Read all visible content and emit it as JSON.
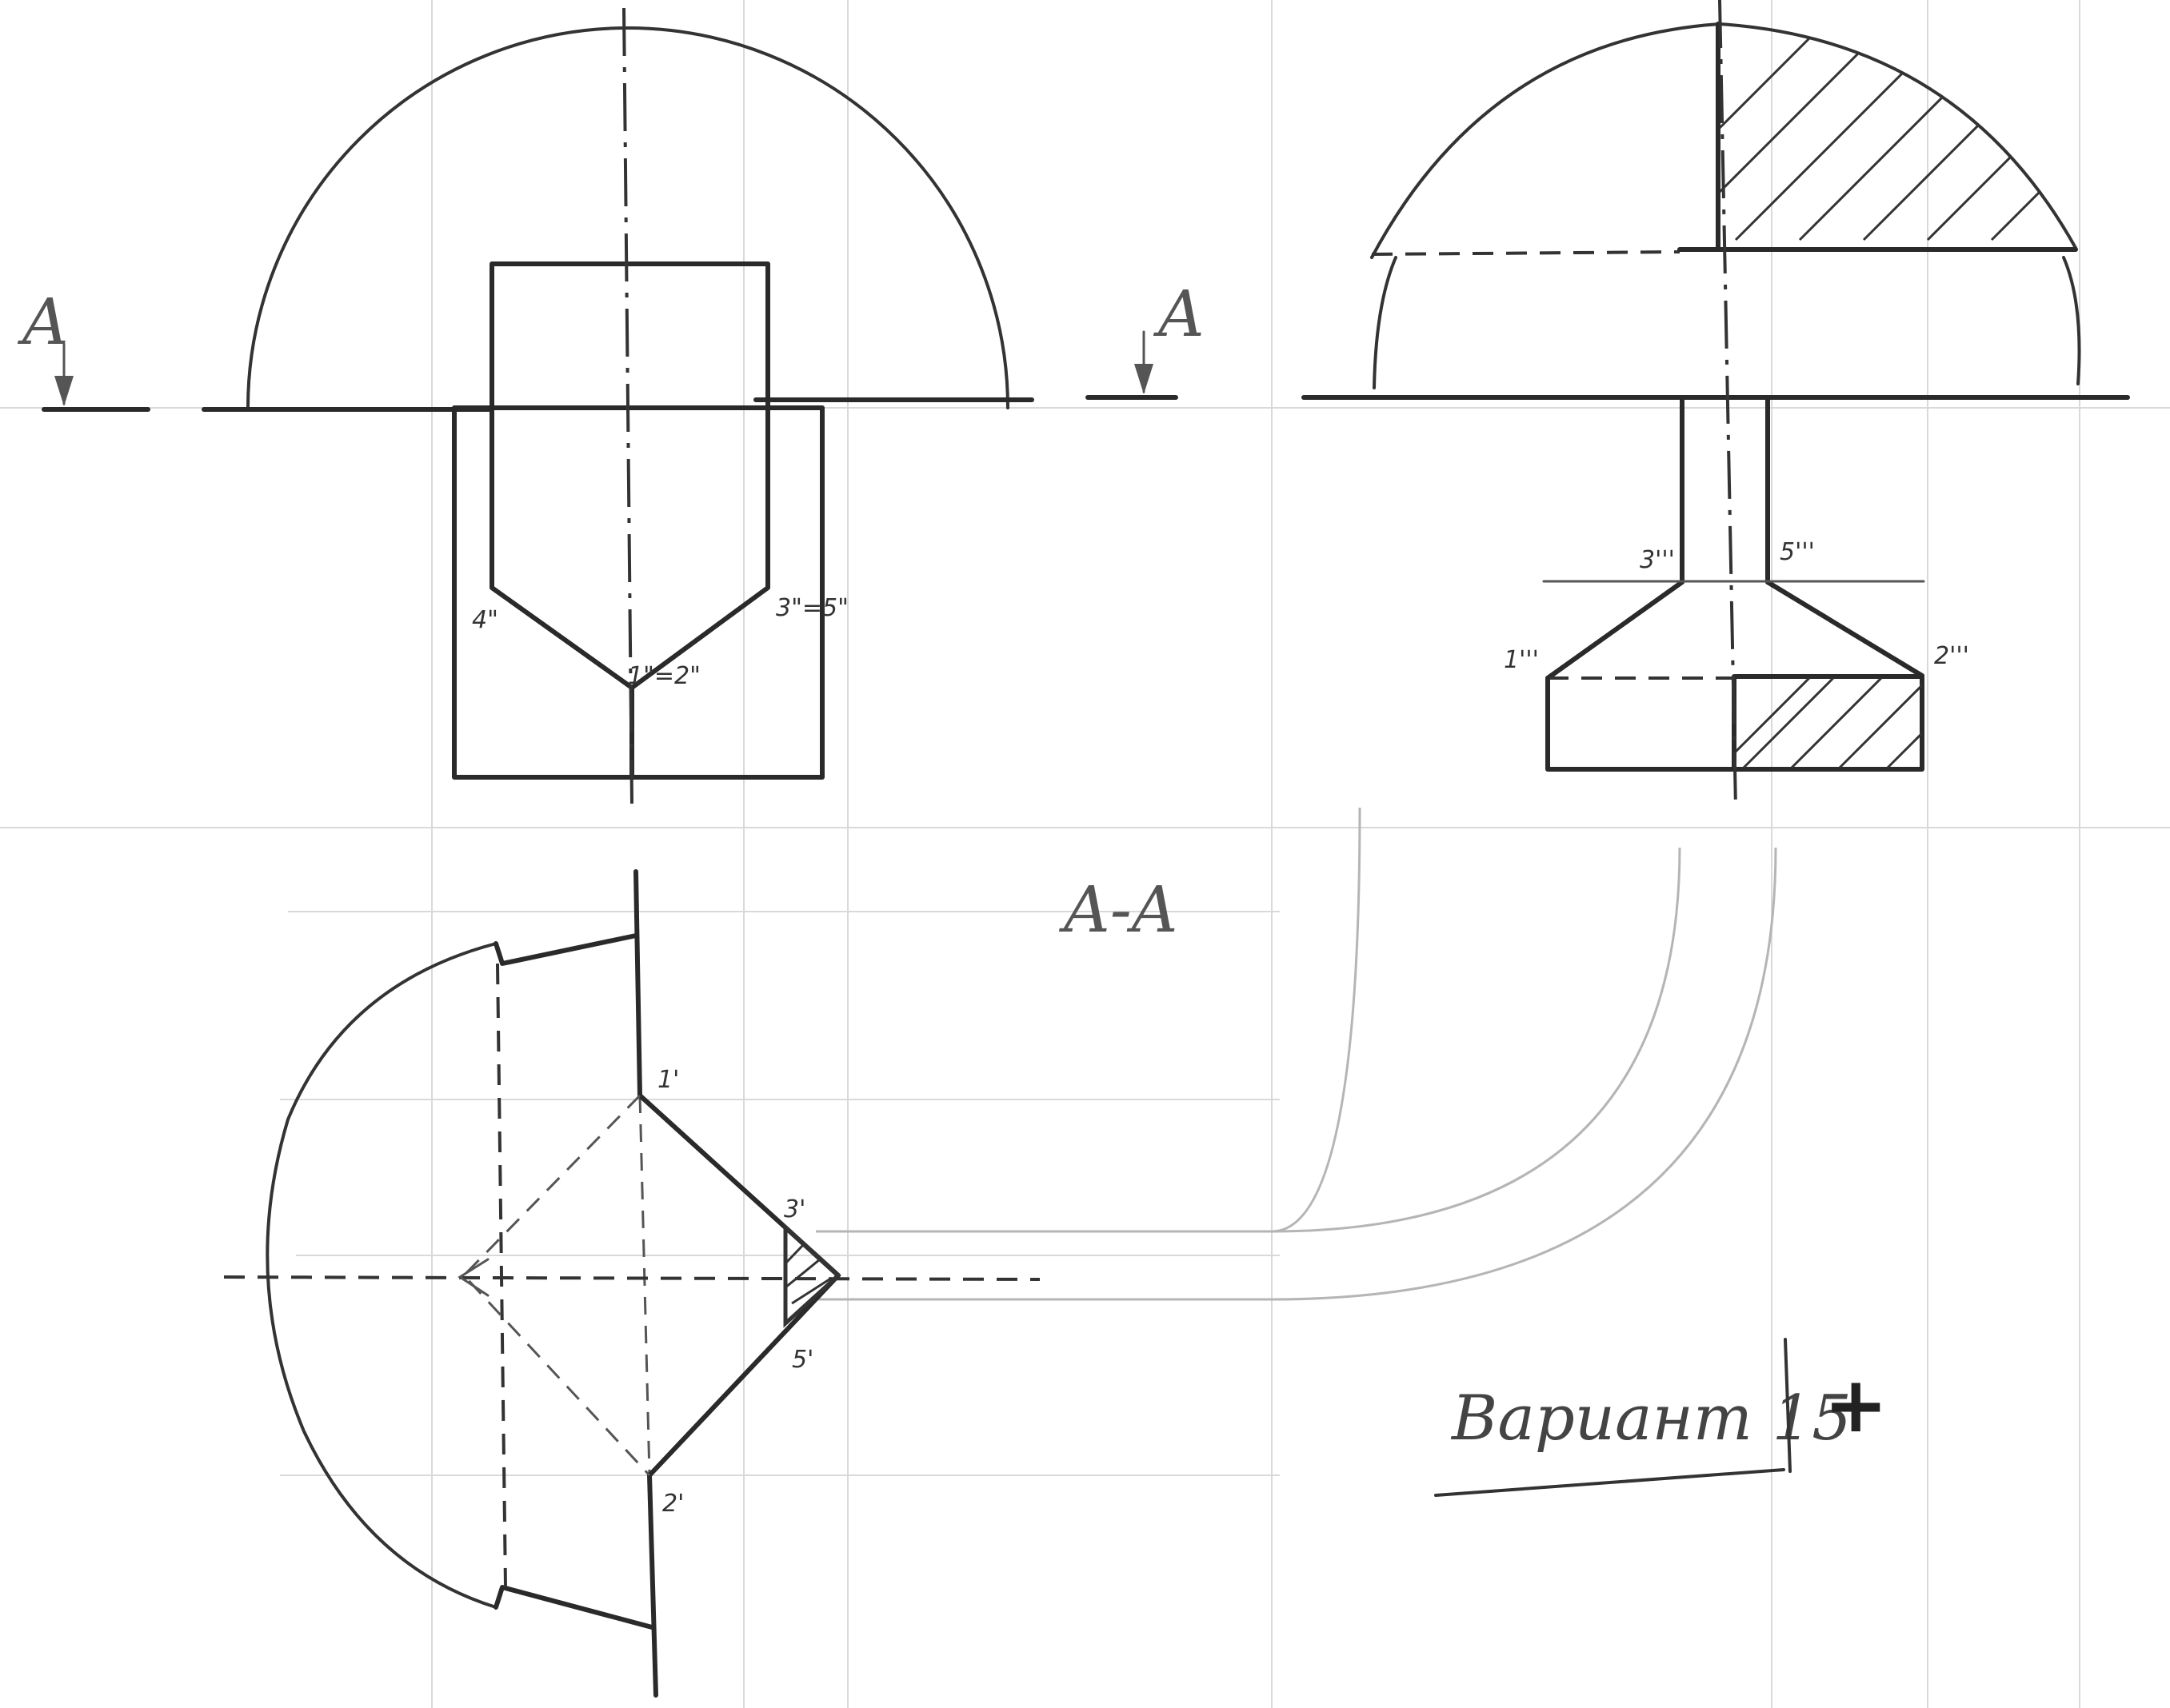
{
  "labels": {
    "cut_left": "A",
    "cut_right": "A",
    "section_title": "A-A",
    "p1_2_front": "1\"=2\"",
    "p3_5_front": "3\"=5\"",
    "p4_front": "4\"",
    "p1_side": "1'''",
    "p2_side": "2'''",
    "p3_side": "3'''",
    "p5_side": "5'''",
    "p1_top": "1'",
    "p2_top": "2'",
    "p3_top": "3'",
    "p5_top": "5'"
  },
  "signature": {
    "text": "Вариант 15",
    "mark": "+"
  },
  "colors": {
    "ink": "#2a2a2a",
    "construction": "#b5b5b5",
    "grid": "#d9d9d9"
  }
}
